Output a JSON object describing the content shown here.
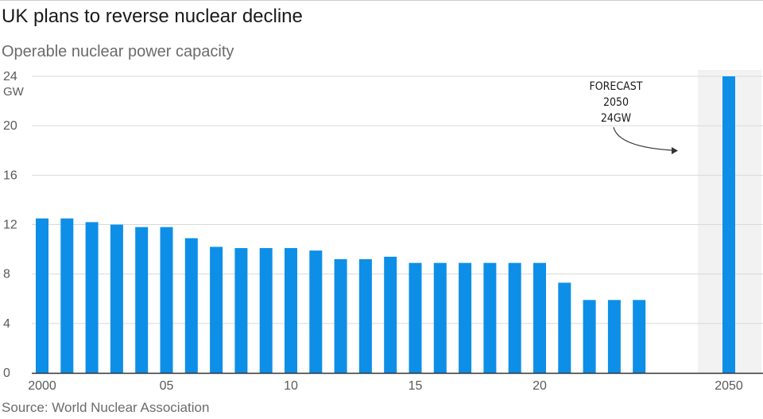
{
  "header": {
    "title": "UK plans to reverse nuclear decline",
    "subtitle": "Operable nuclear power capacity"
  },
  "footer": {
    "source": "Source: World Nuclear Association"
  },
  "colors": {
    "bar": "#0d8fe8",
    "grid": "#d9d9d9",
    "highlight_band": "#f2f2f2",
    "axis": "#333333",
    "annotation_arrow": "#333333"
  },
  "chart_data": {
    "type": "bar",
    "title": "UK plans to reverse nuclear decline",
    "subtitle": "Operable nuclear power capacity",
    "xlabel": "",
    "ylabel": "GW",
    "y_unit_label": "GW",
    "ylim": [
      0,
      24
    ],
    "y_ticks": [
      0,
      4,
      8,
      12,
      16,
      20,
      24
    ],
    "grid": true,
    "categories": [
      "2000",
      "2001",
      "2002",
      "2003",
      "2004",
      "2005",
      "2006",
      "2007",
      "2008",
      "2009",
      "2010",
      "2011",
      "2012",
      "2013",
      "2014",
      "2015",
      "2016",
      "2017",
      "2018",
      "2019",
      "2020",
      "2021",
      "2022",
      "2023",
      "2024",
      "2050"
    ],
    "values": [
      12.5,
      12.5,
      12.2,
      12.0,
      11.8,
      11.8,
      10.9,
      10.2,
      10.1,
      10.1,
      10.1,
      9.9,
      9.2,
      9.2,
      9.4,
      8.9,
      8.9,
      8.9,
      8.9,
      8.9,
      8.9,
      7.3,
      5.9,
      5.9,
      5.9,
      24
    ],
    "x_tick_labels": [
      {
        "category": "2000",
        "label": "2000"
      },
      {
        "category": "2005",
        "label": "05"
      },
      {
        "category": "2010",
        "label": "10"
      },
      {
        "category": "2015",
        "label": "15"
      },
      {
        "category": "2020",
        "label": "20"
      },
      {
        "category": "2050",
        "label": "2050"
      }
    ],
    "highlighted_category": "2050",
    "annotation": {
      "target_category": "2050",
      "lines": [
        "FORECAST",
        "2050",
        "24GW"
      ]
    },
    "source": "Source: World Nuclear Association"
  }
}
